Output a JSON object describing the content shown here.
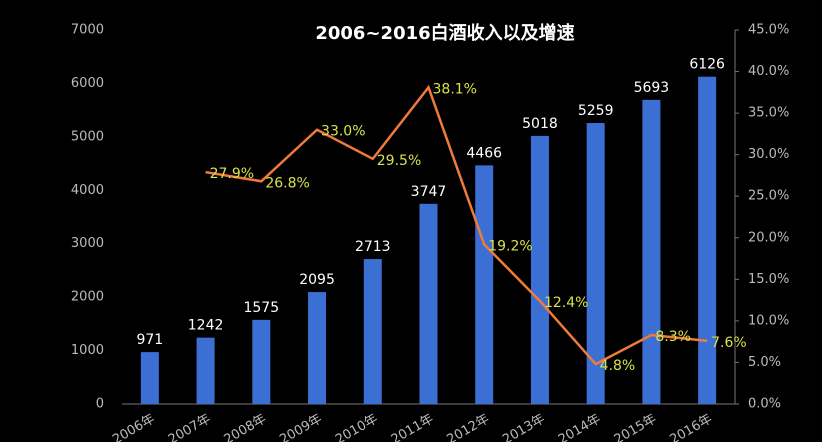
{
  "chart_data": {
    "type": "bar_line",
    "title": "2006~2016白酒收入以及增速",
    "categories": [
      "2006年",
      "2007年",
      "2008年",
      "2009年",
      "2010年",
      "2011年",
      "2012年",
      "2013年",
      "2014年",
      "2015年",
      "2016年"
    ],
    "series": [
      {
        "type": "bar",
        "color": "#3b6fd4",
        "values": [
          971,
          1242,
          1575,
          2095,
          2713,
          3747,
          4466,
          5018,
          5259,
          5693,
          6126
        ]
      },
      {
        "type": "line",
        "axis": "y2",
        "color": "#f07a3a",
        "label_color": "#d8e24a",
        "values": [
          null,
          27.9,
          26.8,
          33.0,
          29.5,
          38.1,
          19.2,
          12.4,
          4.8,
          8.3,
          7.6
        ],
        "value_labels": [
          null,
          "27.9%",
          "26.8%",
          "33.0%",
          "29.5%",
          "38.1%",
          "19.2%",
          "12.4%",
          "4.8%",
          "8.3%",
          "7.6%"
        ]
      }
    ],
    "ylim": [
      0,
      7000
    ],
    "yticks": [
      0,
      1000,
      2000,
      3000,
      4000,
      5000,
      6000,
      7000
    ],
    "y2lim": [
      0,
      45
    ],
    "y2ticks": [
      {
        "value": 0,
        "label": "0.0%"
      },
      {
        "value": 5,
        "label": "5.0%"
      },
      {
        "value": 10,
        "label": "10.0%"
      },
      {
        "value": 15,
        "label": "15.0%"
      },
      {
        "value": 20,
        "label": "20.0%"
      },
      {
        "value": 25,
        "label": "25.0%"
      },
      {
        "value": 30,
        "label": "30.0%"
      },
      {
        "value": 35,
        "label": "35.0%"
      },
      {
        "value": 40,
        "label": "40.0%"
      },
      {
        "value": 45,
        "label": "45.0%"
      }
    ],
    "grid": false
  }
}
